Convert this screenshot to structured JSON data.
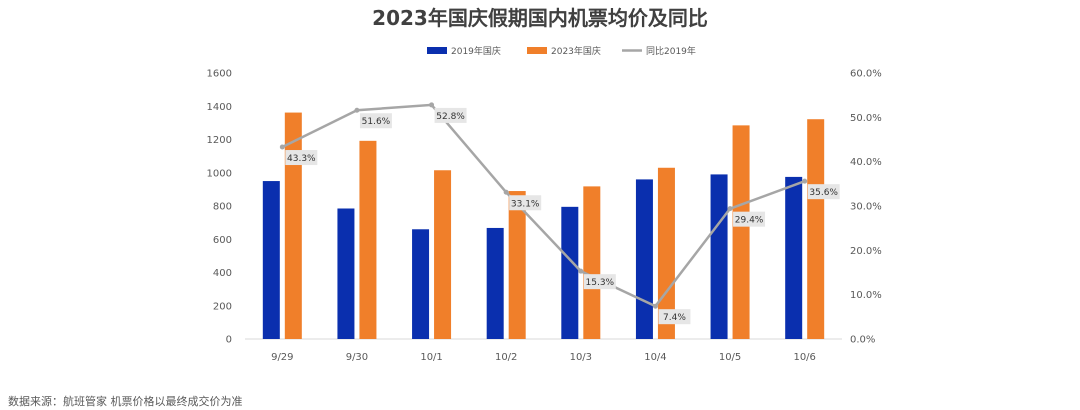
{
  "chart_data": {
    "type": "bar",
    "title": "2023年国庆假期国内机票均价及同比",
    "categories": [
      "9/29",
      "9/30",
      "10/1",
      "10/2",
      "10/3",
      "10/4",
      "10/5",
      "10/6"
    ],
    "series": [
      {
        "name": "2019年国庆",
        "type": "bar",
        "axis": "left",
        "color": "#0a2fae",
        "values": [
          950,
          785,
          660,
          668,
          795,
          960,
          990,
          975
        ]
      },
      {
        "name": "2023年国庆",
        "type": "bar",
        "axis": "left",
        "color": "#f07f2a",
        "values": [
          1362,
          1192,
          1015,
          890,
          918,
          1030,
          1285,
          1322
        ]
      },
      {
        "name": "同比2019年",
        "type": "line",
        "axis": "right",
        "color": "#a6a6a6",
        "values": [
          43.3,
          51.6,
          52.8,
          33.1,
          15.3,
          7.4,
          29.4,
          35.6
        ],
        "labels": [
          "43.3%",
          "51.6%",
          "52.8%",
          "33.1%",
          "15.3%",
          "7.4%",
          "29.4%",
          "35.6%"
        ]
      }
    ],
    "ylim": [
      0,
      1600
    ],
    "yticks": [
      "0",
      "200",
      "400",
      "600",
      "800",
      "1000",
      "1200",
      "1400",
      "1600"
    ],
    "y2lim": [
      0,
      60
    ],
    "y2ticks": [
      "0.0%",
      "10.0%",
      "20.0%",
      "30.0%",
      "40.0%",
      "50.0%",
      "60.0%"
    ],
    "legend_position": "top",
    "grid": false
  },
  "source_note": "数据来源：航班管家 机票价格以最终成交价为准"
}
